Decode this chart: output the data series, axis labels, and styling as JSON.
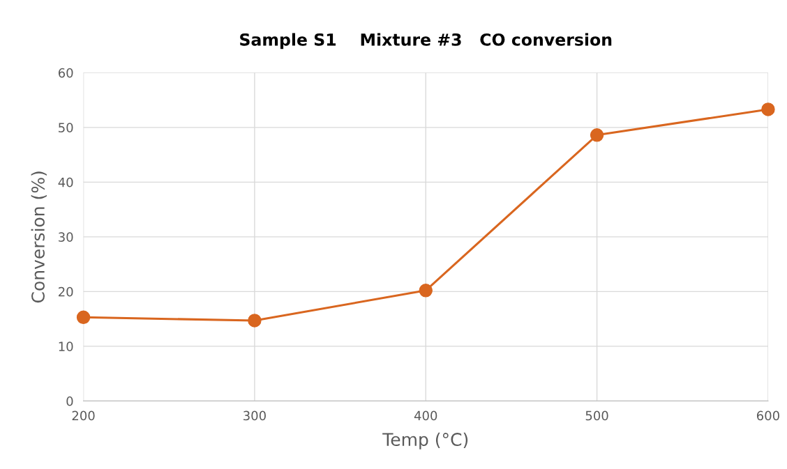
{
  "chart_data": {
    "type": "line",
    "title": "Sample S1    Mixture #3   CO conversion",
    "xlabel": "Temp (°C)",
    "ylabel": "Conversion (%)",
    "x": [
      200,
      300,
      400,
      500,
      600
    ],
    "series": [
      {
        "color": "#d9661f",
        "values": [
          15.3,
          14.7,
          20.2,
          48.6,
          53.3
        ]
      }
    ],
    "xlim": [
      200,
      600
    ],
    "xticks": [
      200,
      300,
      400,
      500,
      600
    ],
    "ylim": [
      0,
      60
    ],
    "yticks": [
      0,
      10,
      20,
      30,
      40,
      50,
      60
    ],
    "grid": true,
    "marker": "circle",
    "line_style": "solid",
    "legend": false
  }
}
